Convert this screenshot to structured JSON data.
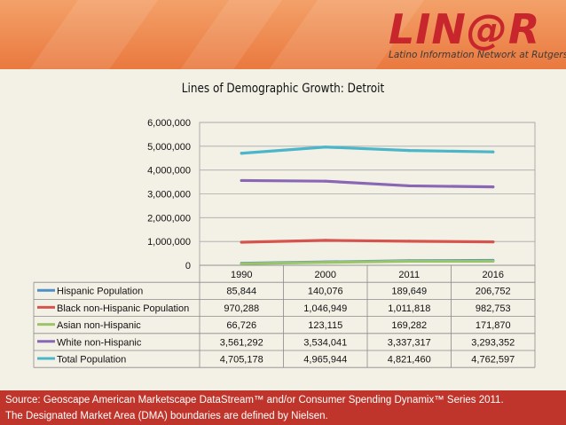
{
  "logo": {
    "text": "LIN@R",
    "tagline": "Latino Information Network at Rutgers"
  },
  "colors": {
    "hispanic": "#4f8fc9",
    "black": "#d6544e",
    "asian": "#9bc469",
    "white": "#8a67b5",
    "total": "#4bb6c9",
    "footer": "#c0352b"
  },
  "chart_data": {
    "type": "line",
    "title": "Lines of Demographic Growth: Detroit",
    "categories": [
      "1990",
      "2000",
      "2011",
      "2016"
    ],
    "ylim": [
      0,
      6000000
    ],
    "yticks": [
      "0",
      "1,000,000",
      "2,000,000",
      "3,000,000",
      "4,000,000",
      "5,000,000",
      "6,000,000"
    ],
    "series": [
      {
        "name": "Hispanic Population",
        "color_key": "hispanic",
        "values": [
          85844,
          140076,
          189649,
          206752
        ],
        "labels": [
          "85,844",
          "140,076",
          "189,649",
          "206,752"
        ]
      },
      {
        "name": "Black non-Hispanic Population",
        "color_key": "black",
        "values": [
          970288,
          1046949,
          1011818,
          982753
        ],
        "labels": [
          "970,288",
          "1,046,949",
          "1,011,818",
          "982,753"
        ]
      },
      {
        "name": "Asian non-Hispanic",
        "color_key": "asian",
        "values": [
          66726,
          123115,
          169282,
          171870
        ],
        "labels": [
          "66,726",
          "123,115",
          "169,282",
          "171,870"
        ]
      },
      {
        "name": "White non-Hispanic",
        "color_key": "white",
        "values": [
          3561292,
          3534041,
          3337317,
          3293352
        ],
        "labels": [
          "3,561,292",
          "3,534,041",
          "3,337,317",
          "3,293,352"
        ]
      },
      {
        "name": "Total Population",
        "color_key": "total",
        "values": [
          4705178,
          4965944,
          4821460,
          4762597
        ],
        "labels": [
          "4,705,178",
          "4,965,944",
          "4,821,460",
          "4,762,597"
        ]
      }
    ]
  },
  "footer": {
    "line1": "Source: Geoscape American Marketscape DataStream™ and/or Consumer Spending Dynamix™ Series 2011.",
    "line2": "The Designated Market Area (DMA) boundaries are defined by Nielsen."
  }
}
